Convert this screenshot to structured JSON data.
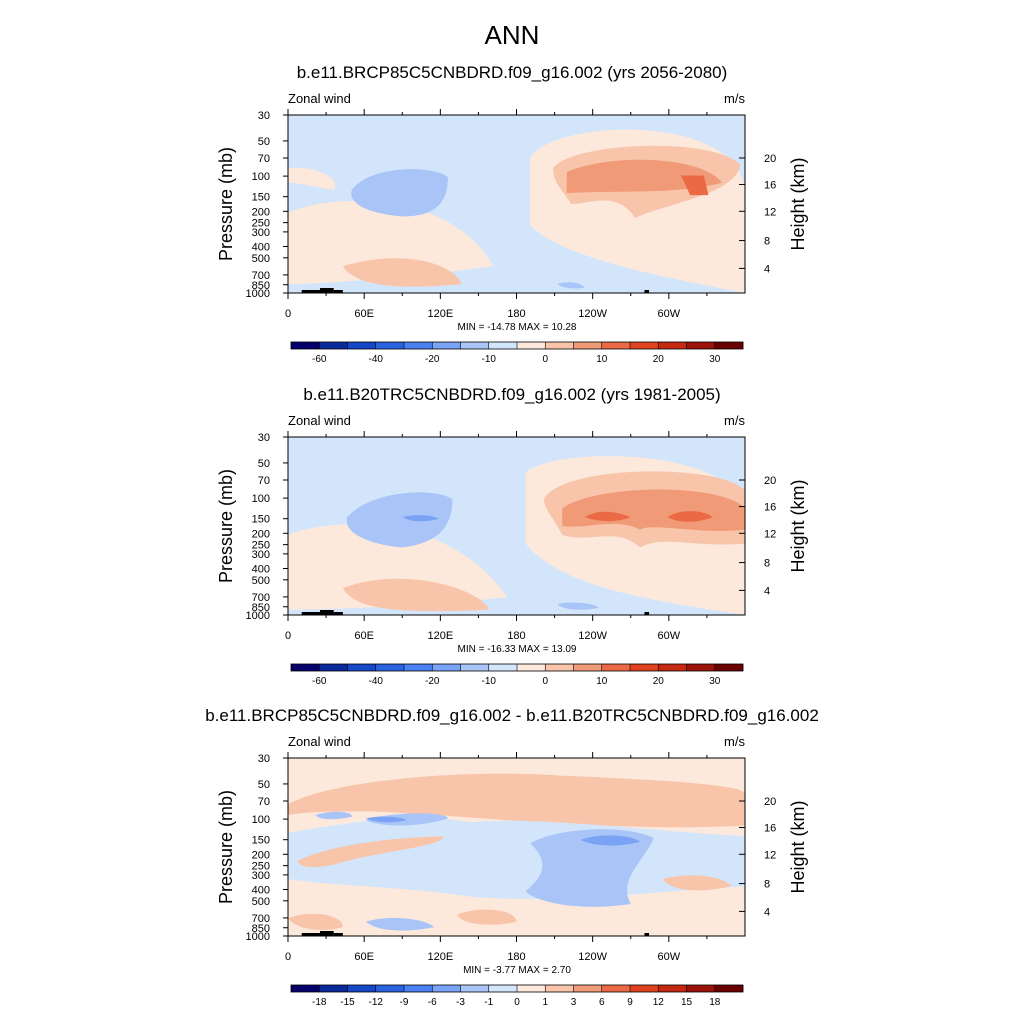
{
  "figure": {
    "title": "ANN",
    "background": "#ffffff"
  },
  "chart_data": [
    {
      "type": "heatmap",
      "title": "b.e11.BRCP85C5CNBDRD.f09_g16.002 (yrs 2056-2080)",
      "variable_label": "Zonal wind",
      "units_label": "m/s",
      "xlabel": "",
      "ylabel_left": "Pressure (mb)",
      "ylabel_right": "Height (km)",
      "x_ticks": [
        "0",
        "60E",
        "120E",
        "180",
        "120W",
        "60W"
      ],
      "y_ticks_left": [
        "30",
        "50",
        "70",
        "100",
        "150",
        "200",
        "250",
        "300",
        "400",
        "500",
        "700",
        "850",
        "1000"
      ],
      "y_ticks_right": [
        "4",
        "8",
        "12",
        "16",
        "20"
      ],
      "stats": "MIN = -14.78  MAX =  10.28",
      "colorbar": {
        "labels": [
          "-60",
          "-40",
          "-20",
          "-10",
          "0",
          "10",
          "20",
          "30"
        ],
        "colors": [
          "#05006b",
          "#0a2a9c",
          "#1547c8",
          "#2a62e0",
          "#4a80f0",
          "#7aa2f5",
          "#a9c4f7",
          "#d3e5fa",
          "#fce9dc",
          "#f8c4aa",
          "#f19a77",
          "#eb6a45",
          "#e0431f",
          "#c52a10",
          "#9b1308",
          "#6b0000"
        ]
      },
      "field": "mean"
    },
    {
      "type": "heatmap",
      "title": "b.e11.B20TRC5CNBDRD.f09_g16.002 (yrs 1981-2005)",
      "variable_label": "Zonal wind",
      "units_label": "m/s",
      "xlabel": "",
      "ylabel_left": "Pressure (mb)",
      "ylabel_right": "Height (km)",
      "x_ticks": [
        "0",
        "60E",
        "120E",
        "180",
        "120W",
        "60W"
      ],
      "y_ticks_left": [
        "30",
        "50",
        "70",
        "100",
        "150",
        "200",
        "250",
        "300",
        "400",
        "500",
        "700",
        "850",
        "1000"
      ],
      "y_ticks_right": [
        "4",
        "8",
        "12",
        "16",
        "20"
      ],
      "stats": "MIN = -16.33  MAX =  13.09",
      "colorbar": {
        "labels": [
          "-60",
          "-40",
          "-20",
          "-10",
          "0",
          "10",
          "20",
          "30"
        ],
        "colors": [
          "#05006b",
          "#0a2a9c",
          "#1547c8",
          "#2a62e0",
          "#4a80f0",
          "#7aa2f5",
          "#a9c4f7",
          "#d3e5fa",
          "#fce9dc",
          "#f8c4aa",
          "#f19a77",
          "#eb6a45",
          "#e0431f",
          "#c52a10",
          "#9b1308",
          "#6b0000"
        ]
      },
      "field": "mean"
    },
    {
      "type": "heatmap",
      "title": "b.e11.BRCP85C5CNBDRD.f09_g16.002 - b.e11.B20TRC5CNBDRD.f09_g16.002",
      "variable_label": "Zonal wind",
      "units_label": "m/s",
      "xlabel": "",
      "ylabel_left": "Pressure (mb)",
      "ylabel_right": "Height (km)",
      "x_ticks": [
        "0",
        "60E",
        "120E",
        "180",
        "120W",
        "60W"
      ],
      "y_ticks_left": [
        "30",
        "50",
        "70",
        "100",
        "150",
        "200",
        "250",
        "300",
        "400",
        "500",
        "700",
        "850",
        "1000"
      ],
      "y_ticks_right": [
        "4",
        "8",
        "12",
        "16",
        "20"
      ],
      "stats": "MIN =  -3.77  MAX =   2.70",
      "colorbar": {
        "labels": [
          "-18",
          "-15",
          "-12",
          "-9",
          "-6",
          "-3",
          "-1",
          "0",
          "1",
          "3",
          "6",
          "9",
          "12",
          "15",
          "18"
        ],
        "colors": [
          "#05006b",
          "#0a2a9c",
          "#1547c8",
          "#2a62e0",
          "#4a80f0",
          "#7aa2f5",
          "#a9c4f7",
          "#d3e5fa",
          "#fce9dc",
          "#f8c4aa",
          "#f19a77",
          "#eb6a45",
          "#e0431f",
          "#c52a10",
          "#9b1308",
          "#6b0000"
        ]
      },
      "field": "diff"
    }
  ]
}
